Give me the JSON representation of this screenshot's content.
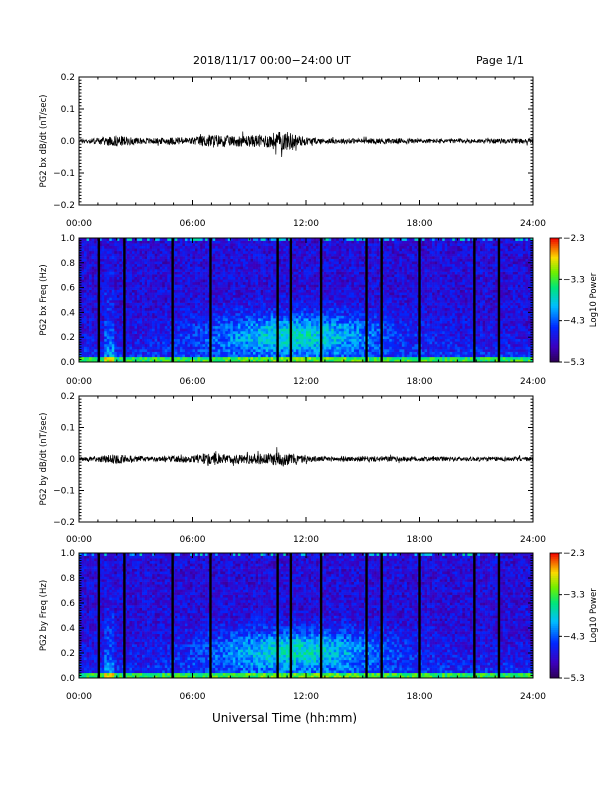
{
  "header": {
    "title": "2018/11/17  00:00−24:00 UT",
    "page": "Page 1/1"
  },
  "chart_data": [
    {
      "type": "line",
      "ylabel": "PG2 bx dB/dt (nT/sec)",
      "xlim": [
        0,
        24
      ],
      "ylim": [
        -0.2,
        0.2
      ],
      "xticks": [
        "00:00",
        "06:00",
        "12:00",
        "18:00",
        "24:00"
      ],
      "yticks": [
        "0.2",
        "0.1",
        "0.0",
        "−0.1",
        "−0.2"
      ],
      "envelope": {
        "x": [
          0,
          1,
          2,
          3,
          4,
          5,
          6,
          7,
          8,
          9,
          10,
          10.5,
          11,
          12,
          13,
          14,
          15,
          16,
          17,
          18,
          19,
          20,
          21,
          22,
          23,
          24
        ],
        "y": [
          0.006,
          0.01,
          0.018,
          0.01,
          0.009,
          0.012,
          0.012,
          0.022,
          0.016,
          0.018,
          0.022,
          0.03,
          0.03,
          0.012,
          0.008,
          0.008,
          0.008,
          0.009,
          0.008,
          0.008,
          0.007,
          0.007,
          0.007,
          0.007,
          0.008,
          0.008
        ]
      },
      "colors": {
        "trace": "#000000"
      }
    },
    {
      "type": "heatmap",
      "ylabel": "PG2 bx Freq (Hz)",
      "xlim": [
        0,
        24
      ],
      "ylim": [
        0,
        1
      ],
      "xticks": [
        "00:00",
        "06:00",
        "12:00",
        "18:00",
        "24:00"
      ],
      "yticks": [
        "1.0",
        "0.8",
        "0.6",
        "0.4",
        "0.2",
        "0.0"
      ],
      "colorbar": {
        "label": "Log10 Power",
        "ticks": [
          "−2.3",
          "−3.3",
          "−4.3",
          "−5.3"
        ]
      },
      "data_gaps_hours": [
        1.05,
        2.4,
        4.95,
        6.95,
        10.5,
        11.2,
        12.8,
        15.2,
        16.0,
        18.0,
        20.9,
        22.2
      ],
      "colors": {
        "gap": "#000000"
      }
    },
    {
      "type": "line",
      "ylabel": "PG2 by dB/dt (nT/sec)",
      "xlim": [
        0,
        24
      ],
      "ylim": [
        -0.2,
        0.2
      ],
      "xticks": [
        "00:00",
        "06:00",
        "12:00",
        "18:00",
        "24:00"
      ],
      "yticks": [
        "0.2",
        "0.1",
        "0.0",
        "−0.1",
        "−0.2"
      ],
      "envelope": {
        "x": [
          0,
          1,
          2,
          3,
          4,
          5,
          6,
          7,
          8,
          9,
          10,
          10.5,
          11,
          12,
          13,
          14,
          15,
          16,
          17,
          18,
          19,
          20,
          21,
          22,
          23,
          24
        ],
        "y": [
          0.005,
          0.009,
          0.016,
          0.009,
          0.008,
          0.01,
          0.011,
          0.02,
          0.014,
          0.016,
          0.018,
          0.022,
          0.02,
          0.01,
          0.008,
          0.008,
          0.008,
          0.009,
          0.008,
          0.008,
          0.007,
          0.007,
          0.007,
          0.007,
          0.007,
          0.007
        ]
      },
      "colors": {
        "trace": "#000000"
      }
    },
    {
      "type": "heatmap",
      "ylabel": "PG2 by Freq (Hz)",
      "xlim": [
        0,
        24
      ],
      "ylim": [
        0,
        1
      ],
      "xticks": [
        "00:00",
        "06:00",
        "12:00",
        "18:00",
        "24:00"
      ],
      "yticks": [
        "1.0",
        "0.8",
        "0.6",
        "0.4",
        "0.2",
        "0.0"
      ],
      "colorbar": {
        "label": "Log10 Power",
        "ticks": [
          "−2.3",
          "−3.3",
          "−4.3",
          "−5.3"
        ]
      },
      "data_gaps_hours": [
        1.05,
        2.4,
        4.95,
        6.95,
        10.5,
        11.2,
        12.8,
        15.2,
        16.0,
        18.0,
        20.9,
        22.2
      ],
      "colors": {
        "gap": "#000000"
      }
    }
  ],
  "footer": {
    "xlabel": "Universal Time (hh:mm)"
  }
}
